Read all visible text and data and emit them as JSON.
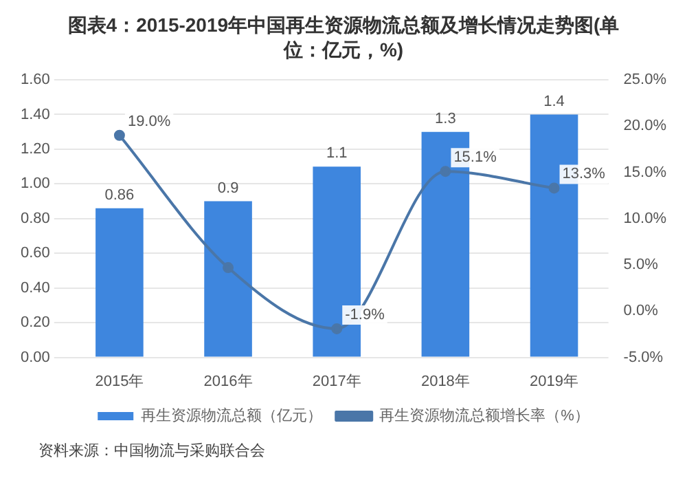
{
  "chart_data": {
    "type": "bar",
    "title": "图表4：2015-2019年中国再生资源物流总额及增长情况走势图(单位：亿元，%)",
    "categories": [
      "2015年",
      "2016年",
      "2017年",
      "2018年",
      "2019年"
    ],
    "series": [
      {
        "name": "再生资源物流总额（亿元）",
        "color": "#3e86de",
        "values": [
          0.86,
          0.9,
          1.1,
          1.3,
          1.4
        ],
        "value_labels": [
          "0.86",
          "0.9",
          "1.1",
          "1.3",
          "1.4"
        ]
      },
      {
        "name": "再生资源物流总额增长率（%）",
        "type": "line",
        "axis": "y2",
        "color": "#4a76a8",
        "values": [
          19.0,
          4.7,
          -1.9,
          15.1,
          13.3
        ],
        "value_labels": [
          "19.0%",
          null,
          "-1.9%",
          "15.1%",
          "13.3%"
        ]
      }
    ],
    "ylim": [
      0,
      1.6
    ],
    "yticks": [
      {
        "value": 0,
        "label": "0.00"
      },
      {
        "value": 0.2,
        "label": "0.20"
      },
      {
        "value": 0.4,
        "label": "0.40"
      },
      {
        "value": 0.6,
        "label": "0.60"
      },
      {
        "value": 0.8,
        "label": "0.80"
      },
      {
        "value": 1.0,
        "label": "1.00"
      },
      {
        "value": 1.2,
        "label": "1.20"
      },
      {
        "value": 1.4,
        "label": "1.40"
      },
      {
        "value": 1.6,
        "label": "1.60"
      }
    ],
    "y2lim": [
      -5,
      25
    ],
    "y2ticks": [
      {
        "value": -5,
        "label": "-5.0%"
      },
      {
        "value": 0,
        "label": "0.0%"
      },
      {
        "value": 5,
        "label": "5.0%"
      },
      {
        "value": 10,
        "label": "10.0%"
      },
      {
        "value": 15,
        "label": "15.0%"
      },
      {
        "value": 20,
        "label": "20.0%"
      },
      {
        "value": 25,
        "label": "25.0%"
      }
    ],
    "grid": "y",
    "legend": "bottom",
    "marker": "circle",
    "annotations": [
      "资料来源：中国物流与采购联合会"
    ]
  }
}
